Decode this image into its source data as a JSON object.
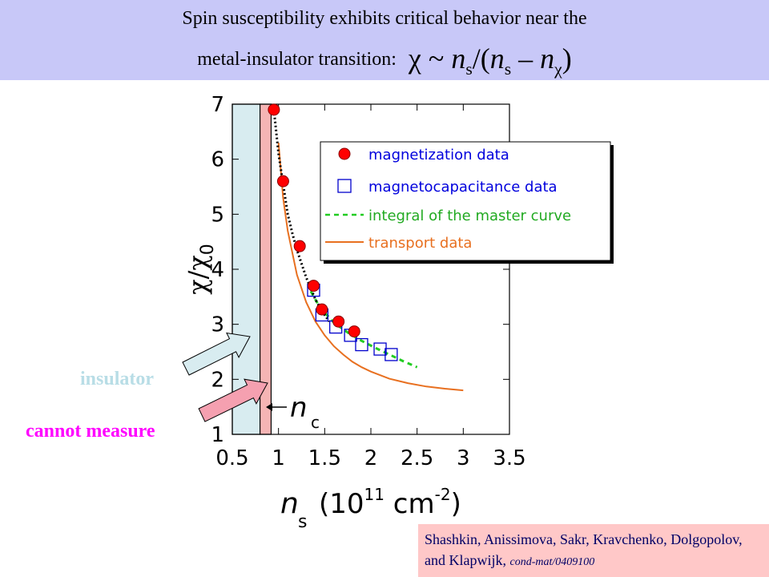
{
  "header": {
    "line1": "Spin susceptibility exhibits critical behavior near the",
    "line2": "metal-insulator transition:",
    "formula": {
      "chi": "χ",
      "tilde": "~",
      "n": "n",
      "sub_s": "s",
      "slash": "/(",
      "dash": "–",
      "sub_chi": "χ",
      "close": ")"
    },
    "background": "#c8c8f8"
  },
  "annotations": {
    "insulator": "insulator",
    "cannot_measure": "cannot measure",
    "nc_label": "n",
    "nc_sub": "c"
  },
  "axis_labels": {
    "y_main": "χ/χ",
    "y_sub": "0",
    "x_main": "n",
    "x_sub": "s",
    "x_unit": "(10",
    "x_exp": "11",
    "x_unit2": " cm",
    "x_exp2": "-2",
    "x_close": ")"
  },
  "credit": {
    "text": "Shashkin, Anissimova, Sakr, Kravchenko, Dolgopolov, and Klapwijk,",
    "ref": "cond-mat/0409100"
  },
  "colors": {
    "insulator_band": "#d8ecf0",
    "cannot_band": "#f5b4b4",
    "magnetization": "#ff0000",
    "magnetocapacitance": "#0000cc",
    "integral": "#22cc22",
    "transport": "#e87020",
    "fit": "#000000",
    "arrow_insulator": "#d8ecf0",
    "arrow_cannot": "#f5a0b0",
    "annotation_cannot": "#ff00ff",
    "annotation_insulator": "#b8dde6"
  },
  "chart_data": {
    "type": "scatter",
    "xlim": [
      0.5,
      3.5
    ],
    "ylim": [
      1,
      7
    ],
    "xticks": [
      "0.5",
      "1",
      "1.5",
      "2",
      "2.5",
      "3",
      "3.5"
    ],
    "xtick_values": [
      0.5,
      1,
      1.5,
      2,
      2.5,
      3,
      3.5
    ],
    "yticks": [
      "1",
      "2",
      "3",
      "4",
      "5",
      "6",
      "7"
    ],
    "ytick_values": [
      1,
      2,
      3,
      4,
      5,
      6,
      7
    ],
    "grid": false,
    "legend_position": "top-right",
    "regions": [
      {
        "name": "insulator",
        "x_from": 0.5,
        "x_to": 0.8
      },
      {
        "name": "cannot measure",
        "x_from": 0.8,
        "x_to": 0.92
      }
    ],
    "series": [
      {
        "name": "magnetization data",
        "kind": "marker-circle",
        "x": [
          0.95,
          1.05,
          1.23,
          1.38,
          1.47,
          1.65,
          1.82
        ],
        "y": [
          6.9,
          5.6,
          4.42,
          3.7,
          3.27,
          3.05,
          2.87
        ]
      },
      {
        "name": "magnetocapacitance data",
        "kind": "marker-square",
        "x": [
          1.38,
          1.47,
          1.62,
          1.78,
          1.9,
          2.1,
          2.22
        ],
        "y": [
          3.62,
          3.17,
          2.95,
          2.8,
          2.63,
          2.55,
          2.45
        ]
      },
      {
        "name": "integral of the master curve",
        "kind": "dashed-line",
        "x": [
          1.35,
          1.45,
          1.6,
          1.75,
          1.9,
          2.05,
          2.2,
          2.35,
          2.5
        ],
        "y": [
          3.6,
          3.3,
          3.03,
          2.85,
          2.7,
          2.57,
          2.45,
          2.33,
          2.22
        ]
      },
      {
        "name": "transport data",
        "kind": "line",
        "x": [
          1.0,
          1.05,
          1.1,
          1.2,
          1.3,
          1.4,
          1.5,
          1.6,
          1.7,
          1.8,
          1.9,
          2.0,
          2.2,
          2.4,
          2.6,
          2.8,
          3.0
        ],
        "y": [
          6.3,
          5.3,
          4.7,
          3.9,
          3.4,
          3.05,
          2.8,
          2.6,
          2.45,
          2.32,
          2.22,
          2.14,
          2.01,
          1.93,
          1.87,
          1.83,
          1.8
        ]
      },
      {
        "kind": "dotted-fit",
        "x": [
          0.95,
          1.0,
          1.05,
          1.1,
          1.15,
          1.2,
          1.25,
          1.3,
          1.35,
          1.4,
          1.45,
          1.5,
          1.55
        ],
        "y": [
          6.9,
          6.1,
          5.55,
          5.0,
          4.65,
          4.35,
          4.1,
          3.85,
          3.65,
          3.45,
          3.3,
          3.17,
          3.05
        ]
      }
    ],
    "legend": [
      {
        "label": "magnetization data",
        "kind": "marker-circle"
      },
      {
        "label": "magnetocapacitance data",
        "kind": "marker-square"
      },
      {
        "label": "integral of the master curve",
        "kind": "dashed-line"
      },
      {
        "label": "transport data",
        "kind": "line"
      }
    ]
  }
}
